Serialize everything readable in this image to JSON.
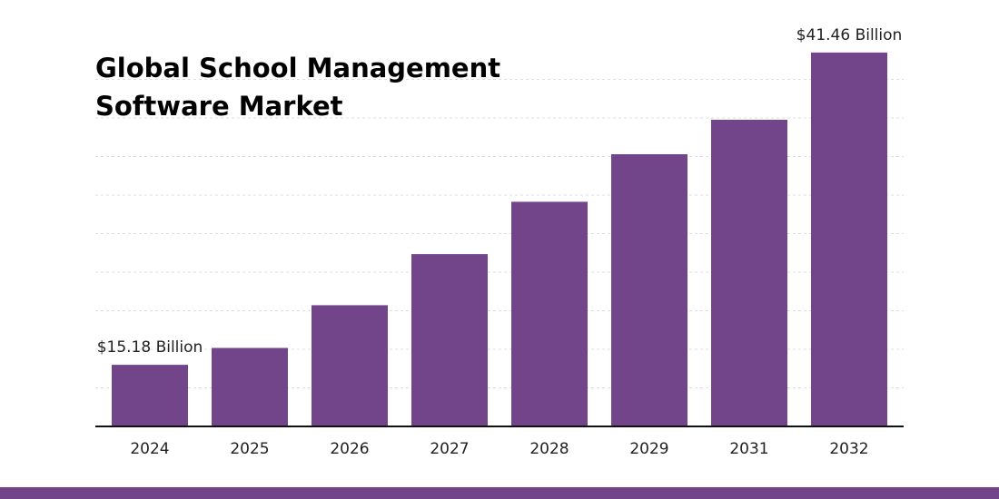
{
  "colors": {
    "bar": "#72458b",
    "footer": "#72458b",
    "axis": "#111111",
    "grid": "#dedede"
  },
  "chart_data": {
    "type": "bar",
    "title": "Global School Management Software Market",
    "title_lines": [
      "Global School Management",
      "Software Market"
    ],
    "categories": [
      "2024",
      "2025",
      "2026",
      "2027",
      "2028",
      "2029",
      "2031",
      "2032"
    ],
    "values": [
      15.18,
      16.6,
      20.2,
      24.5,
      28.9,
      32.9,
      35.8,
      41.46
    ],
    "unit": "Billion USD",
    "data_labels": [
      {
        "index": 0,
        "text": "$15.18 Billion"
      },
      {
        "index": 7,
        "text": "$41.46 Billion"
      }
    ],
    "xlabel": "",
    "ylabel": "",
    "ylim": [
      10,
      42
    ],
    "grid": true,
    "legend": "none"
  }
}
